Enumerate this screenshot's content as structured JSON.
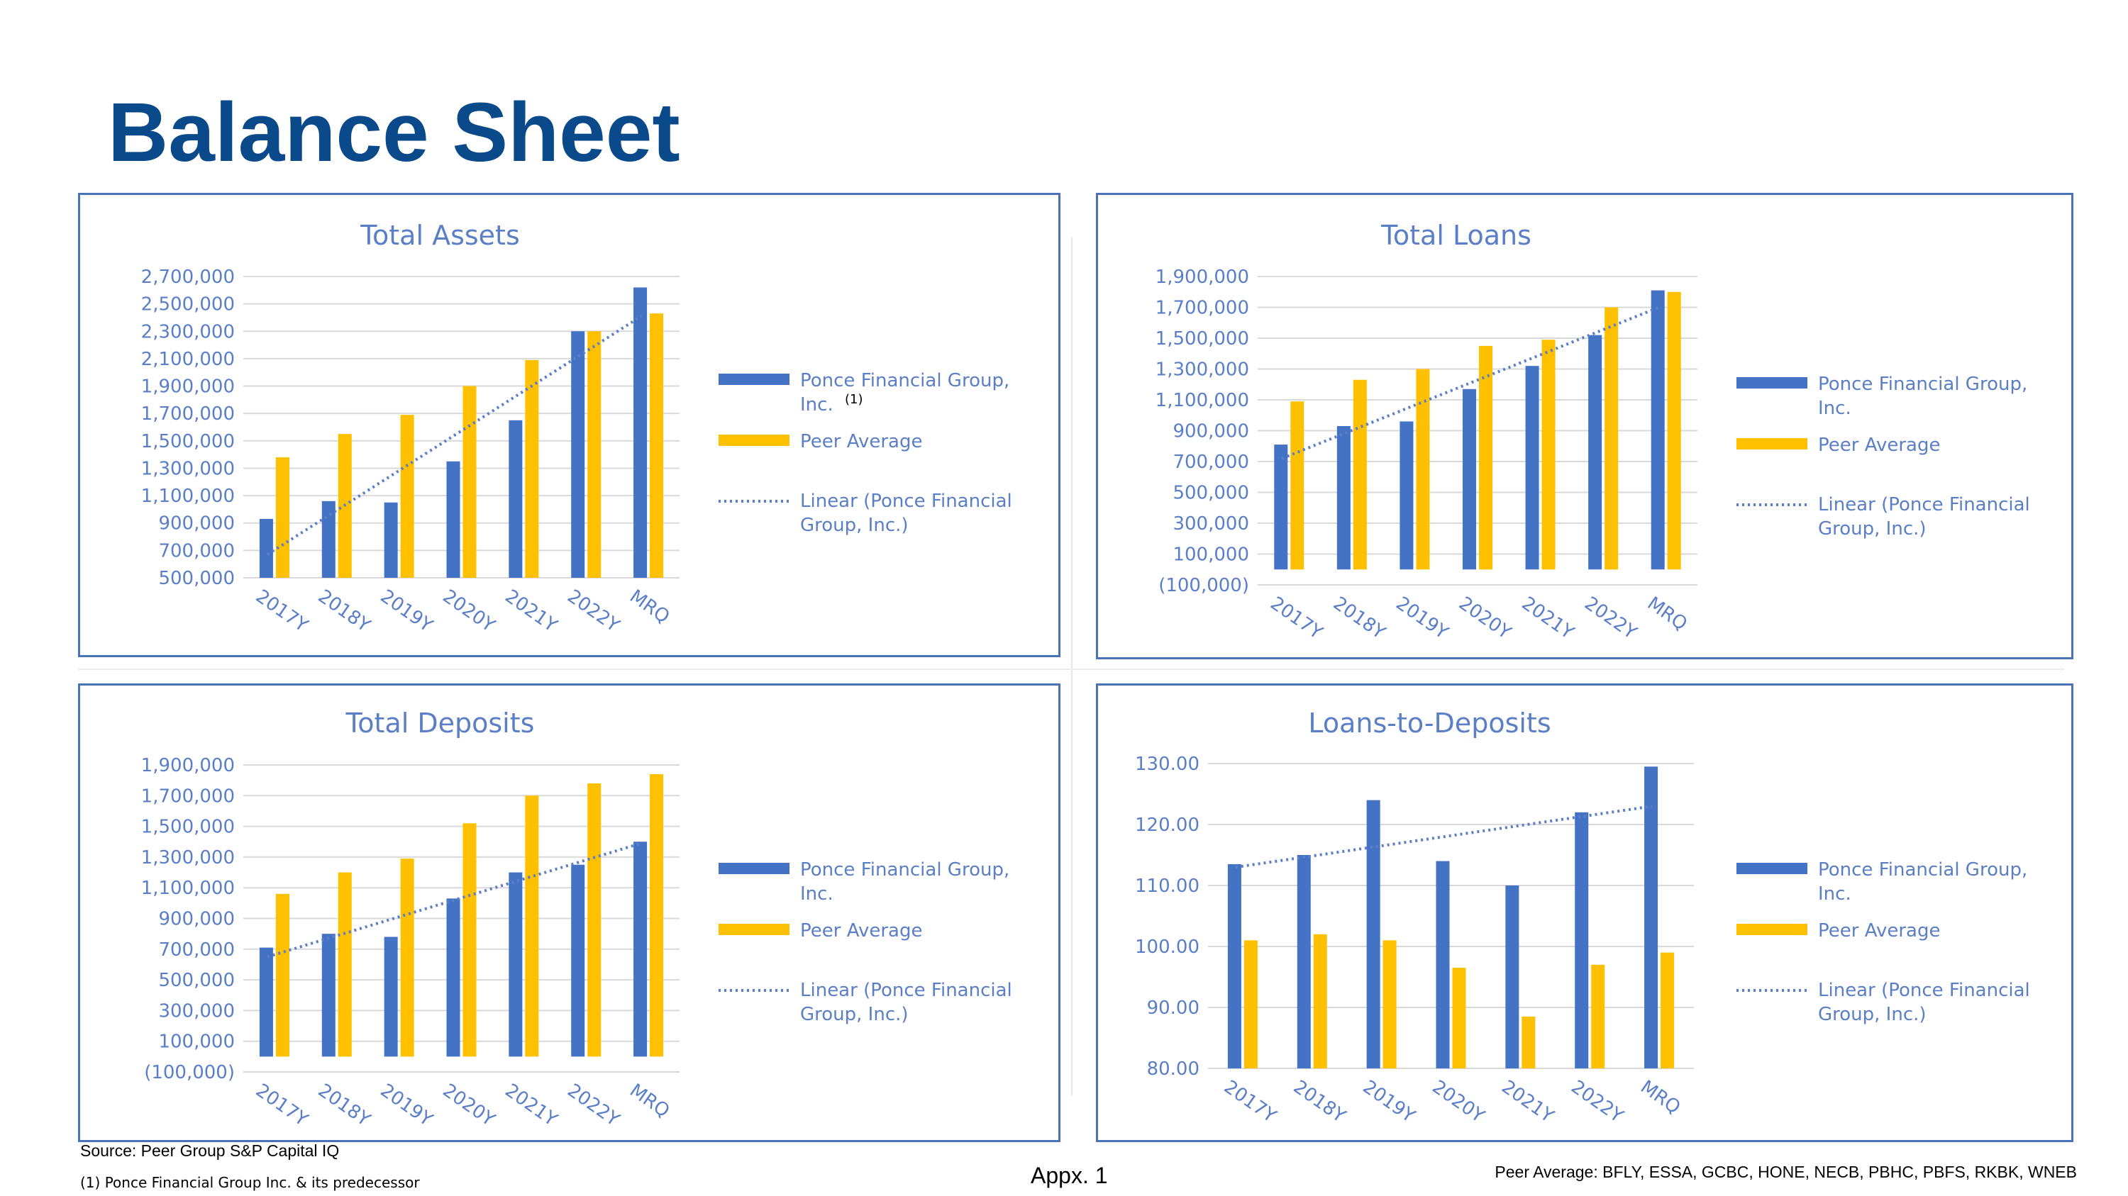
{
  "page": {
    "title": "Balance Sheet",
    "source": "Source: Peer Group S&P Capital IQ",
    "footnote": "(1) Ponce Financial Group Inc. & its predecessor",
    "appendix": "Appx. 1",
    "peers": "Peer Average: BFLY, ESSA, GCBC, HONE, NECB, PBHC, PBFS, RKBK, WNEB"
  },
  "colors": {
    "ponce": "#4472c4",
    "peer": "#ffc000",
    "grid": "#d9d9d9",
    "title": "#0b4a8a",
    "frame": "#4a72b8"
  },
  "chart_data": [
    {
      "type": "bar",
      "title": "Total Assets",
      "categories": [
        "2017Y",
        "2018Y",
        "2019Y",
        "2020Y",
        "2021Y",
        "2022Y",
        "MRQ"
      ],
      "series": [
        {
          "name": "Ponce Financial Group, Inc.",
          "values": [
            930000,
            1060000,
            1050000,
            1350000,
            1650000,
            2300000,
            2620000
          ]
        },
        {
          "name": "Peer Average",
          "values": [
            1380000,
            1550000,
            1690000,
            1900000,
            2090000,
            2300000,
            2430000
          ]
        }
      ],
      "trendline": {
        "name": "Linear (Ponce Financial Group, Inc.)",
        "start": 670000,
        "end": 2410000
      },
      "legend_superscript": "(1)",
      "ylim": [
        500000,
        2700000
      ],
      "yticks": [
        "2,700,000",
        "2,500,000",
        "2,300,000",
        "2,100,000",
        "1,900,000",
        "1,700,000",
        "1,500,000",
        "1,300,000",
        "1,100,000",
        "900,000",
        "700,000",
        "500,000"
      ],
      "grid": true,
      "legend": "right"
    },
    {
      "type": "bar",
      "title": "Total Loans",
      "categories": [
        "2017Y",
        "2018Y",
        "2019Y",
        "2020Y",
        "2021Y",
        "2022Y",
        "MRQ"
      ],
      "series": [
        {
          "name": "Ponce Financial Group, Inc.",
          "values": [
            810000,
            930000,
            960000,
            1170000,
            1320000,
            1520000,
            1810000
          ]
        },
        {
          "name": "Peer Average",
          "values": [
            1090000,
            1230000,
            1300000,
            1450000,
            1490000,
            1700000,
            1800000
          ]
        }
      ],
      "trendline": {
        "name": "Linear (Ponce Financial Group, Inc.)",
        "start": 720000,
        "end": 1700000
      },
      "ylim": [
        -100000,
        1900000
      ],
      "yticks": [
        "1,900,000",
        "1,700,000",
        "1,500,000",
        "1,300,000",
        "1,100,000",
        "900,000",
        "700,000",
        "500,000",
        "300,000",
        "100,000",
        "(100,000)"
      ],
      "grid": true,
      "legend": "right"
    },
    {
      "type": "bar",
      "title": "Total Deposits",
      "categories": [
        "2017Y",
        "2018Y",
        "2019Y",
        "2020Y",
        "2021Y",
        "2022Y",
        "MRQ"
      ],
      "series": [
        {
          "name": "Ponce Financial Group, Inc.",
          "values": [
            710000,
            800000,
            780000,
            1030000,
            1200000,
            1250000,
            1400000
          ]
        },
        {
          "name": "Peer Average",
          "values": [
            1060000,
            1200000,
            1290000,
            1520000,
            1700000,
            1780000,
            1840000
          ]
        }
      ],
      "trendline": {
        "name": "Linear (Ponce Financial Group, Inc.)",
        "start": 650000,
        "end": 1390000
      },
      "ylim": [
        -100000,
        1900000
      ],
      "yticks": [
        "1,900,000",
        "1,700,000",
        "1,500,000",
        "1,300,000",
        "1,100,000",
        "900,000",
        "700,000",
        "500,000",
        "300,000",
        "100,000",
        "(100,000)"
      ],
      "grid": true,
      "legend": "right"
    },
    {
      "type": "bar",
      "title": "Loans-to-Deposits",
      "categories": [
        "2017Y",
        "2018Y",
        "2019Y",
        "2020Y",
        "2021Y",
        "2022Y",
        "MRQ"
      ],
      "series": [
        {
          "name": "Ponce Financial Group, Inc.",
          "values": [
            113.5,
            115.0,
            124.0,
            114.0,
            110.0,
            122.0,
            129.5
          ]
        },
        {
          "name": "Peer Average",
          "values": [
            101.0,
            102.0,
            101.0,
            96.5,
            88.5,
            97.0,
            99.0
          ]
        }
      ],
      "trendline": {
        "name": "Linear (Ponce Financial Group, Inc.)",
        "start": 113.0,
        "end": 123.0
      },
      "ylim": [
        80,
        130
      ],
      "yticks": [
        "130.00",
        "120.00",
        "110.00",
        "100.00",
        "90.00",
        "80.00"
      ],
      "grid": true,
      "legend": "right"
    }
  ]
}
